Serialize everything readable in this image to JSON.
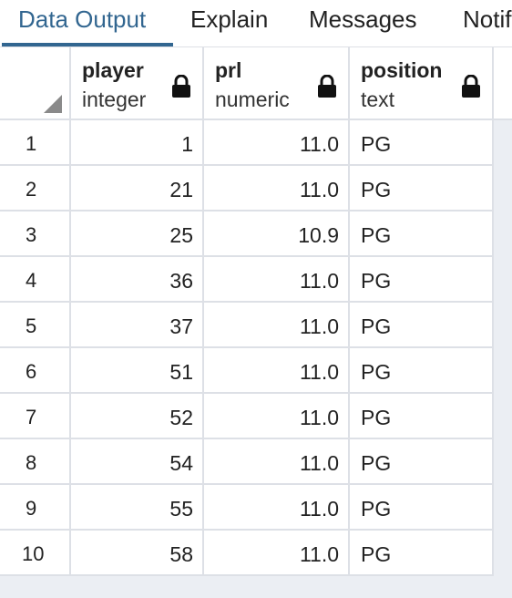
{
  "tabs": [
    {
      "label": "Data Output",
      "active": true
    },
    {
      "label": "Explain",
      "active": false
    },
    {
      "label": "Messages",
      "active": false
    },
    {
      "label": "Notifications",
      "active": false
    }
  ],
  "columns": [
    {
      "name": "player",
      "type": "integer",
      "icon": "lock-icon"
    },
    {
      "name": "prl",
      "type": "numeric",
      "icon": "lock-icon"
    },
    {
      "name": "position",
      "type": "text",
      "icon": "lock-icon"
    }
  ],
  "rows": [
    {
      "n": "1",
      "player": "1",
      "prl": "11.0",
      "position": "PG"
    },
    {
      "n": "2",
      "player": "21",
      "prl": "11.0",
      "position": "PG"
    },
    {
      "n": "3",
      "player": "25",
      "prl": "10.9",
      "position": "PG"
    },
    {
      "n": "4",
      "player": "36",
      "prl": "11.0",
      "position": "PG"
    },
    {
      "n": "5",
      "player": "37",
      "prl": "11.0",
      "position": "PG"
    },
    {
      "n": "6",
      "player": "51",
      "prl": "11.0",
      "position": "PG"
    },
    {
      "n": "7",
      "player": "52",
      "prl": "11.0",
      "position": "PG"
    },
    {
      "n": "8",
      "player": "54",
      "prl": "11.0",
      "position": "PG"
    },
    {
      "n": "9",
      "player": "55",
      "prl": "11.0",
      "position": "PG"
    },
    {
      "n": "10",
      "player": "58",
      "prl": "11.0",
      "position": "PG"
    }
  ],
  "colors": {
    "accent": "#326690",
    "grid_line": "#dde0e6",
    "background": "#ebeef3"
  }
}
